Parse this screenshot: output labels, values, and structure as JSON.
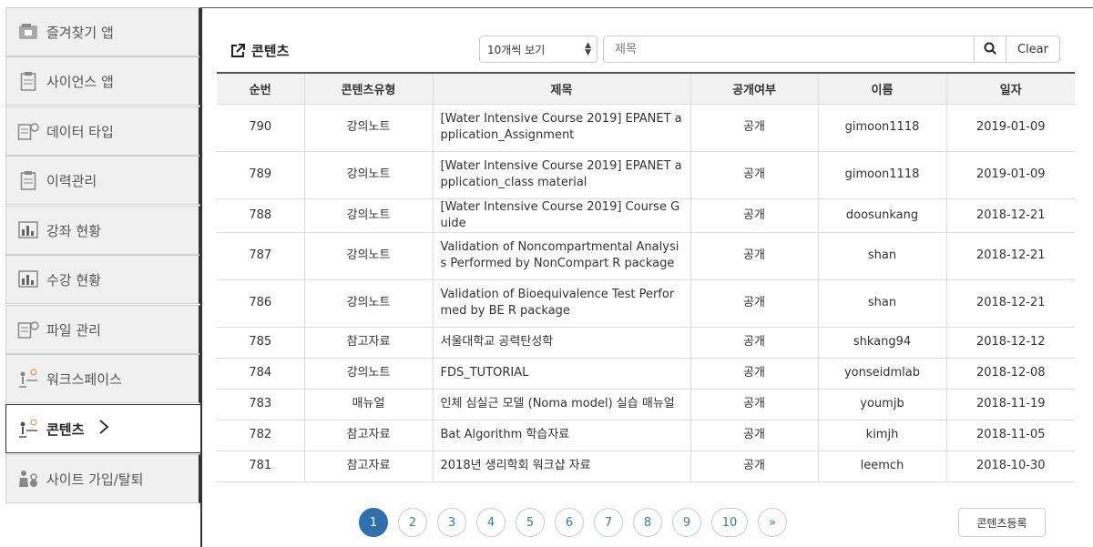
{
  "sidebar": {
    "items": [
      {
        "label": "즐겨찾기 앱",
        "icon": "favorites-icon"
      },
      {
        "label": "사이언스 앱",
        "icon": "clipboard-icon"
      },
      {
        "label": "데이터 타입",
        "icon": "data-type-icon"
      },
      {
        "label": "이력관리",
        "icon": "clipboard-icon"
      },
      {
        "label": "강좌 현황",
        "icon": "bar-chart-icon"
      },
      {
        "label": "수강 현황",
        "icon": "bar-chart-icon"
      },
      {
        "label": "파일 관리",
        "icon": "file-manage-icon"
      },
      {
        "label": "워크스페이스",
        "icon": "workspace-icon"
      },
      {
        "label": "콘텐츠",
        "icon": "contents-icon",
        "active": true
      },
      {
        "label": "사이트 가입/탈퇴",
        "icon": "user-settings-icon"
      }
    ]
  },
  "header": {
    "title": "콘텐츠",
    "page_size": "10개씩 보기",
    "search_placeholder": "제목",
    "clear_label": "Clear"
  },
  "table": {
    "columns": [
      "순번",
      "콘텐츠유형",
      "제목",
      "공개여부",
      "이름",
      "일자"
    ],
    "rows": [
      {
        "no": "790",
        "type": "강의노트",
        "title": "[Water Intensive Course 2019] EPANET application_Assignment",
        "public": "공개",
        "name": "gimoon1118",
        "date": "2019-01-09"
      },
      {
        "no": "789",
        "type": "강의노트",
        "title": "[Water Intensive Course 2019] EPANET application_class material",
        "public": "공개",
        "name": "gimoon1118",
        "date": "2019-01-09"
      },
      {
        "no": "788",
        "type": "강의노트",
        "title": "[Water Intensive Course 2019] Course Guide",
        "public": "공개",
        "name": "doosunkang",
        "date": "2018-12-21"
      },
      {
        "no": "787",
        "type": "강의노트",
        "title": "Validation of Noncompartmental Analysis Performed by NonCompart R package",
        "public": "공개",
        "name": "shan",
        "date": "2018-12-21"
      },
      {
        "no": "786",
        "type": "강의노트",
        "title": "Validation of Bioequivalence Test Performed by BE R package",
        "public": "공개",
        "name": "shan",
        "date": "2018-12-21"
      },
      {
        "no": "785",
        "type": "참고자료",
        "title": "서울대학교 공력탄성학",
        "public": "공개",
        "name": "shkang94",
        "date": "2018-12-12"
      },
      {
        "no": "784",
        "type": "강의노트",
        "title": "FDS_TUTORIAL",
        "public": "공개",
        "name": "yonseidmlab",
        "date": "2018-12-08"
      },
      {
        "no": "783",
        "type": "매뉴얼",
        "title": "인체 심실근 모델 (Noma model) 실습 매뉴얼",
        "public": "공개",
        "name": "youmjb",
        "date": "2018-11-19"
      },
      {
        "no": "782",
        "type": "참고자료",
        "title": "Bat Algorithm 학습자료",
        "public": "공개",
        "name": "kimjh",
        "date": "2018-11-05"
      },
      {
        "no": "781",
        "type": "참고자료",
        "title": "2018년 생리학회 워크샵 자료",
        "public": "공개",
        "name": "leemch",
        "date": "2018-10-30"
      }
    ]
  },
  "pagination": {
    "pages": [
      "1",
      "2",
      "3",
      "4",
      "5",
      "6",
      "7",
      "8",
      "9",
      "10"
    ],
    "next": "»",
    "current": "1"
  },
  "register_label": "콘텐츠등록",
  "colors": {
    "accent": "#2f6fb0",
    "link": "#337ab7"
  }
}
